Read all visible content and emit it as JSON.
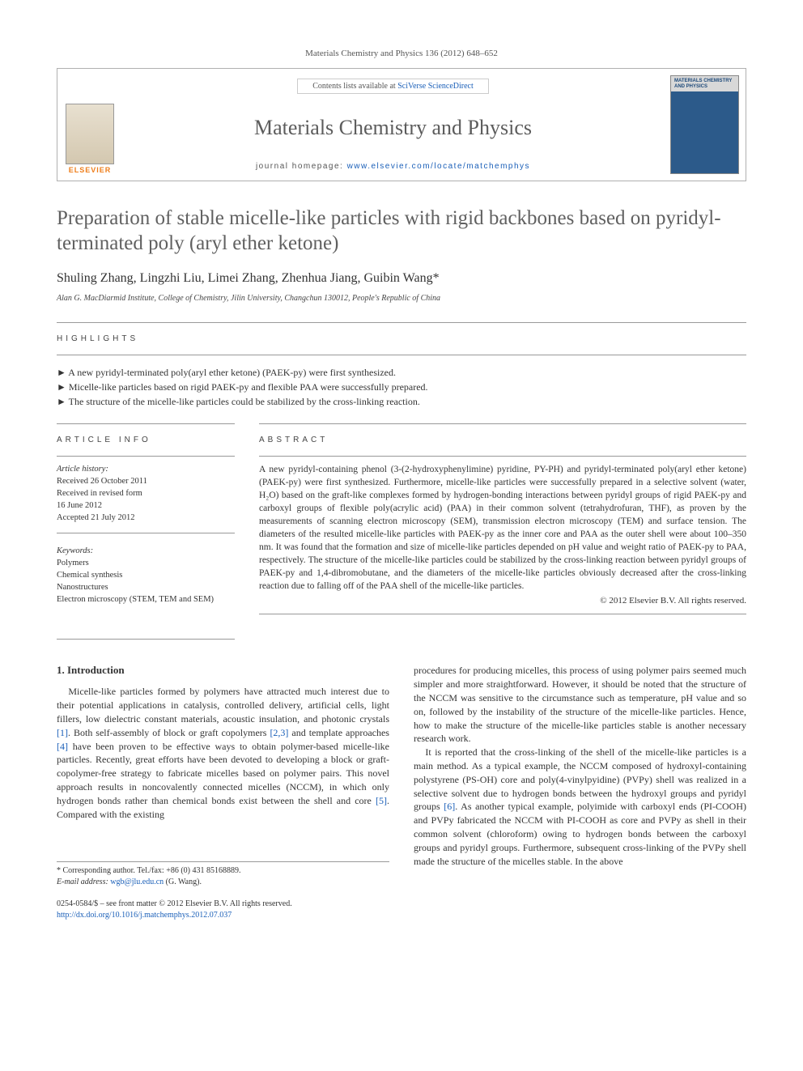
{
  "citation": "Materials Chemistry and Physics 136 (2012) 648–652",
  "header": {
    "contents_prefix": "Contents lists available at ",
    "contents_link": "SciVerse ScienceDirect",
    "journal_name": "Materials Chemistry and Physics",
    "homepage_prefix": "journal homepage: ",
    "homepage_link": "www.elsevier.com/locate/matchemphys",
    "publisher_label": "ELSEVIER",
    "cover_title": "MATERIALS CHEMISTRY AND PHYSICS"
  },
  "title": "Preparation of stable micelle-like particles with rigid backbones based on pyridyl-terminated poly (aryl ether ketone)",
  "authors": "Shuling Zhang, Lingzhi Liu, Limei Zhang, Zhenhua Jiang, Guibin Wang",
  "corr_mark": "*",
  "affiliation": "Alan G. MacDiarmid Institute, College of Chemistry, Jilin University, Changchun 130012, People's Republic of China",
  "labels": {
    "highlights": "HIGHLIGHTS",
    "article_info": "ARTICLE INFO",
    "abstract": "ABSTRACT"
  },
  "highlights": {
    "h1": "A new pyridyl-terminated poly(aryl ether ketone) (PAEK-py) were first synthesized.",
    "h2": "Micelle-like particles based on rigid PAEK-py and flexible PAA were successfully prepared.",
    "h3": "The structure of the micelle-like particles could be stabilized by the cross-linking reaction."
  },
  "article_info": {
    "history_label": "Article history:",
    "received": "Received 26 October 2011",
    "revised": "Received in revised form",
    "revised_date": "16 June 2012",
    "accepted": "Accepted 21 July 2012",
    "keywords_label": "Keywords:",
    "k1": "Polymers",
    "k2": "Chemical synthesis",
    "k3": "Nanostructures",
    "k4": "Electron microscopy (STEM, TEM and SEM)"
  },
  "abstract": "A new pyridyl-containing phenol (3-(2-hydroxyphenylimine) pyridine, PY-PH) and pyridyl-terminated poly(aryl ether ketone) (PAEK-py) were first synthesized. Furthermore, micelle-like particles were successfully prepared in a selective solvent (water, H₂O) based on the graft-like complexes formed by hydrogen-bonding interactions between pyridyl groups of rigid PAEK-py and carboxyl groups of flexible poly(acrylic acid) (PAA) in their common solvent (tetrahydrofuran, THF), as proven by the measurements of scanning electron microscopy (SEM), transmission electron microscopy (TEM) and surface tension. The diameters of the resulted micelle-like particles with PAEK-py as the inner core and PAA as the outer shell were about 100–350 nm. It was found that the formation and size of micelle-like particles depended on pH value and weight ratio of PAEK-py to PAA, respectively. The structure of the micelle-like particles could be stabilized by the cross-linking reaction between pyridyl groups of PAEK-py and 1,4-dibromobutane, and the diameters of the micelle-like particles obviously decreased after the cross-linking reaction due to falling off of the PAA shell of the micelle-like particles.",
  "copyright": "© 2012 Elsevier B.V. All rights reserved.",
  "intro_heading": "1. Introduction",
  "intro_col1": "Micelle-like particles formed by polymers have attracted much interest due to their potential applications in catalysis, controlled delivery, artificial cells, light fillers, low dielectric constant materials, acoustic insulation, and photonic crystals [1]. Both self-assembly of block or graft copolymers [2,3] and template approaches [4] have been proven to be effective ways to obtain polymer-based micelle-like particles. Recently, great efforts have been devoted to developing a block or graft-copolymer-free strategy to fabricate micelles based on polymer pairs. This novel approach results in noncovalently connected micelles (NCCM), in which only hydrogen bonds rather than chemical bonds exist between the shell and core [5]. Compared with the existing",
  "intro_col2_p1": "procedures for producing micelles, this process of using polymer pairs seemed much simpler and more straightforward. However, it should be noted that the structure of the NCCM was sensitive to the circumstance such as temperature, pH value and so on, followed by the instability of the structure of the micelle-like particles. Hence, how to make the structure of the micelle-like particles stable is another necessary research work.",
  "intro_col2_p2": "It is reported that the cross-linking of the shell of the micelle-like particles is a main method. As a typical example, the NCCM composed of hydroxyl-containing polystyrene (PS-OH) core and poly(4-vinylpyidine) (PVPy) shell was realized in a selective solvent due to hydrogen bonds between the hydroxyl groups and pyridyl groups [6]. As another typical example, polyimide with carboxyl ends (PI-COOH) and PVPy fabricated the NCCM with PI-COOH as core and PVPy as shell in their common solvent (chloroform) owing to hydrogen bonds between the carboxyl groups and pyridyl groups. Furthermore, subsequent cross-linking of the PVPy shell made the structure of the micelles stable. In the above",
  "footnotes": {
    "corr": "* Corresponding author. Tel./fax: +86 (0) 431 85168889.",
    "email_label": "E-mail address: ",
    "email": "wgb@jlu.edu.cn",
    "email_suffix": " (G. Wang)."
  },
  "bottom": {
    "issn_line": "0254-0584/$ – see front matter © 2012 Elsevier B.V. All rights reserved.",
    "doi": "http://dx.doi.org/10.1016/j.matchemphys.2012.07.037"
  },
  "colors": {
    "link": "#1a5fb8",
    "elsevier_orange": "#ee7d1a",
    "rule": "#999999",
    "text": "#333333",
    "title_gray": "#606060"
  }
}
